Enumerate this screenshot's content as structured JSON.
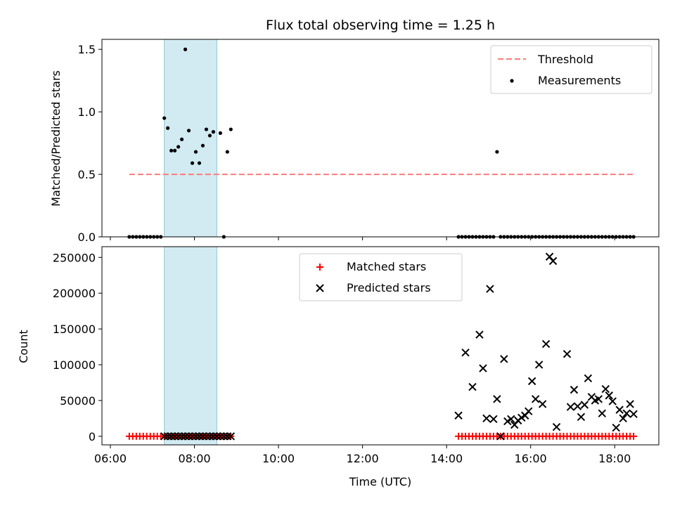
{
  "chart_data": [
    {
      "type": "scatter",
      "title": "Flux total observing time = 1.25 h",
      "ylabel": "Matched/Predicted stars",
      "xlim_hours": [
        5.8,
        19.05
      ],
      "ylim": [
        0,
        1.58
      ],
      "yticks": [
        "0.0",
        "0.5",
        "1.0",
        "1.5"
      ],
      "shaded_span": {
        "start": "07:17",
        "end": "08:32",
        "color": "#add8e6"
      },
      "legend": {
        "placement": "upper right",
        "threshold_label": "Threshold",
        "measurements_label": "Measurements"
      },
      "threshold": {
        "value": 0.5,
        "x_start": "06:27",
        "x_end": "18:27",
        "color": "#ff7b7b",
        "style": "dashed"
      },
      "series": [
        {
          "name": "Measurements",
          "color": "#000000",
          "x": [
            "06:27",
            "06:32",
            "06:37",
            "06:42",
            "06:47",
            "06:52",
            "06:57",
            "07:02",
            "07:07",
            "07:12",
            "07:17",
            "07:22",
            "07:27",
            "07:32",
            "07:37",
            "07:42",
            "07:47",
            "07:52",
            "07:57",
            "08:02",
            "08:07",
            "08:12",
            "08:17",
            "08:22",
            "08:27",
            "08:37",
            "08:42",
            "08:47",
            "08:52",
            "14:17",
            "14:22",
            "14:27",
            "14:32",
            "14:37",
            "14:42",
            "14:47",
            "14:52",
            "14:57",
            "15:02",
            "15:07",
            "15:12",
            "15:17",
            "15:22",
            "15:27",
            "15:32",
            "15:37",
            "15:42",
            "15:47",
            "15:52",
            "15:57",
            "16:02",
            "16:07",
            "16:12",
            "16:17",
            "16:22",
            "16:27",
            "16:32",
            "16:37",
            "16:42",
            "16:47",
            "16:52",
            "16:57",
            "17:02",
            "17:07",
            "17:12",
            "17:17",
            "17:22",
            "17:27",
            "17:32",
            "17:37",
            "17:42",
            "17:47",
            "17:52",
            "17:57",
            "18:02",
            "18:07",
            "18:12",
            "18:17",
            "18:22",
            "18:27"
          ],
          "y": [
            0,
            0,
            0,
            0,
            0,
            0,
            0,
            0,
            0,
            0,
            0.95,
            0.87,
            0.69,
            0.69,
            0.72,
            0.78,
            1.5,
            0.85,
            0.59,
            0.68,
            0.59,
            0.73,
            0.86,
            0.81,
            0.84,
            0.83,
            0,
            0.68,
            0.86,
            0,
            0,
            0,
            0,
            0,
            0,
            0,
            0,
            0,
            0,
            0,
            0.68,
            0,
            0,
            0,
            0,
            0,
            0,
            0,
            0,
            0,
            0,
            0,
            0,
            0,
            0,
            0,
            0,
            0,
            0,
            0,
            0,
            0,
            0,
            0,
            0,
            0,
            0,
            0,
            0,
            0,
            0,
            0,
            0,
            0,
            0,
            0,
            0,
            0,
            0,
            0
          ]
        }
      ]
    },
    {
      "type": "scatter",
      "ylabel": "Count",
      "xlabel": "Time (UTC)",
      "xlim_hours": [
        5.8,
        19.05
      ],
      "ylim": [
        -12000,
        265000
      ],
      "yticks": [
        "0",
        "50000",
        "100000",
        "150000",
        "200000",
        "250000"
      ],
      "xticks": [
        "06:00",
        "08:00",
        "10:00",
        "12:00",
        "14:00",
        "16:00",
        "18:00"
      ],
      "shaded_span": {
        "start": "07:17",
        "end": "08:32",
        "color": "#add8e6"
      },
      "legend": {
        "placement": "upper center",
        "matched_label": "Matched stars",
        "predicted_label": "Predicted stars"
      },
      "series": [
        {
          "name": "Matched stars",
          "marker": "plus",
          "color": "#ff0000",
          "x": [
            "06:27",
            "06:32",
            "06:37",
            "06:42",
            "06:47",
            "06:52",
            "06:57",
            "07:02",
            "07:07",
            "07:12",
            "07:17",
            "07:22",
            "07:27",
            "07:32",
            "07:37",
            "07:42",
            "07:47",
            "07:52",
            "07:57",
            "08:02",
            "08:07",
            "08:12",
            "08:17",
            "08:22",
            "08:27",
            "08:32",
            "08:37",
            "08:42",
            "08:47",
            "08:52",
            "14:17",
            "14:22",
            "14:27",
            "14:32",
            "14:37",
            "14:42",
            "14:47",
            "14:52",
            "14:57",
            "15:02",
            "15:07",
            "15:12",
            "15:17",
            "15:22",
            "15:27",
            "15:32",
            "15:37",
            "15:42",
            "15:47",
            "15:52",
            "15:57",
            "16:02",
            "16:07",
            "16:12",
            "16:17",
            "16:22",
            "16:27",
            "16:32",
            "16:37",
            "16:42",
            "16:47",
            "16:52",
            "16:57",
            "17:02",
            "17:07",
            "17:12",
            "17:17",
            "17:22",
            "17:27",
            "17:32",
            "17:37",
            "17:42",
            "17:47",
            "17:52",
            "17:57",
            "18:02",
            "18:07",
            "18:12",
            "18:17",
            "18:22",
            "18:27"
          ],
          "y": [
            0,
            0,
            0,
            0,
            0,
            0,
            0,
            0,
            0,
            0,
            0,
            0,
            0,
            0,
            0,
            0,
            0,
            0,
            0,
            0,
            0,
            0,
            0,
            0,
            0,
            0,
            0,
            0,
            0,
            0,
            0,
            0,
            0,
            0,
            0,
            0,
            0,
            0,
            0,
            0,
            0,
            0,
            0,
            0,
            0,
            0,
            0,
            0,
            0,
            0,
            0,
            0,
            0,
            0,
            0,
            0,
            0,
            0,
            0,
            0,
            0,
            0,
            0,
            0,
            0,
            0,
            0,
            0,
            0,
            0,
            0,
            0,
            0,
            0,
            0,
            0,
            0,
            0,
            0,
            0,
            0
          ]
        },
        {
          "name": "Predicted stars",
          "marker": "x",
          "color": "#000000",
          "x": [
            "07:17",
            "07:22",
            "07:27",
            "07:32",
            "07:37",
            "07:42",
            "07:47",
            "07:52",
            "07:57",
            "08:02",
            "08:07",
            "08:12",
            "08:17",
            "08:22",
            "08:27",
            "08:32",
            "08:37",
            "08:42",
            "08:47",
            "08:52",
            "14:17",
            "14:27",
            "14:37",
            "14:47",
            "14:52",
            "14:57",
            "15:02",
            "15:07",
            "15:12",
            "15:17",
            "15:22",
            "15:27",
            "15:32",
            "15:37",
            "15:42",
            "15:47",
            "15:52",
            "15:57",
            "16:02",
            "16:07",
            "16:12",
            "16:17",
            "16:22",
            "16:27",
            "16:32",
            "16:37",
            "16:52",
            "16:57",
            "17:02",
            "17:07",
            "17:12",
            "17:17",
            "17:22",
            "17:27",
            "17:32",
            "17:37",
            "17:42",
            "17:47",
            "17:52",
            "17:57",
            "18:02",
            "18:07",
            "18:12",
            "18:17",
            "18:22",
            "18:27"
          ],
          "y": [
            0,
            0,
            0,
            0,
            0,
            0,
            0,
            0,
            0,
            0,
            0,
            0,
            0,
            0,
            0,
            0,
            0,
            0,
            0,
            0,
            29000,
            117000,
            69000,
            142000,
            95000,
            25000,
            206000,
            24000,
            52000,
            0,
            108000,
            21000,
            24000,
            16000,
            22000,
            26000,
            29000,
            35000,
            77000,
            52000,
            100000,
            45000,
            129000,
            251000,
            245000,
            13000,
            115000,
            41000,
            65000,
            42000,
            27000,
            44000,
            81000,
            55000,
            50000,
            52000,
            32000,
            66000,
            57000,
            49000,
            12000,
            37000,
            25000,
            32000,
            45000,
            31000
          ]
        }
      ]
    }
  ]
}
